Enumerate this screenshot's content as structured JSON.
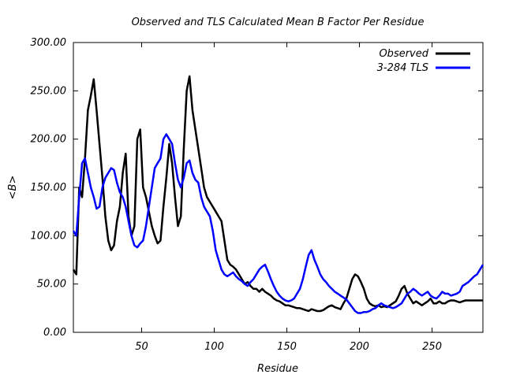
{
  "chart_data": {
    "type": "line",
    "title": "Observed and TLS Calculated Mean B Factor Per Residue",
    "xlabel": "Residue",
    "ylabel": "<B>",
    "xlim": [
      3,
      285
    ],
    "ylim": [
      0,
      300
    ],
    "xticks": [
      50,
      100,
      150,
      200,
      250
    ],
    "xtick_labels": [
      "50",
      "100",
      "150",
      "200",
      "250"
    ],
    "yticks": [
      0,
      50,
      100,
      150,
      200,
      250,
      300
    ],
    "ytick_labels": [
      "0.00",
      "50.00",
      "100.00",
      "150.00",
      "200.00",
      "250.00",
      "300.00"
    ],
    "grid": false,
    "legend_position": "top-right",
    "series": [
      {
        "name": "Observed",
        "color": "#000000",
        "x": [
          3,
          5,
          7,
          9,
          11,
          13,
          15,
          17,
          19,
          21,
          23,
          25,
          27,
          29,
          31,
          33,
          35,
          37,
          39,
          41,
          43,
          45,
          47,
          49,
          51,
          53,
          55,
          57,
          59,
          61,
          63,
          65,
          67,
          69,
          71,
          73,
          75,
          77,
          79,
          81,
          83,
          85,
          87,
          89,
          91,
          93,
          95,
          97,
          99,
          101,
          103,
          105,
          107,
          109,
          111,
          113,
          115,
          117,
          119,
          121,
          123,
          125,
          127,
          129,
          131,
          133,
          135,
          137,
          139,
          141,
          143,
          145,
          147,
          149,
          151,
          153,
          155,
          157,
          159,
          161,
          163,
          165,
          167,
          169,
          171,
          173,
          175,
          177,
          179,
          181,
          183,
          185,
          187,
          189,
          191,
          193,
          195,
          197,
          199,
          201,
          203,
          205,
          207,
          209,
          211,
          213,
          215,
          217,
          219,
          221,
          223,
          225,
          227,
          229,
          231,
          233,
          235,
          237,
          239,
          241,
          243,
          245,
          247,
          249,
          251,
          253,
          255,
          257,
          259,
          261,
          263,
          265,
          267,
          269,
          271,
          273,
          275,
          277,
          279,
          281,
          283,
          285
        ],
        "y": [
          65,
          60,
          150,
          140,
          180,
          230,
          245,
          262,
          230,
          195,
          160,
          120,
          95,
          85,
          90,
          115,
          130,
          165,
          185,
          120,
          100,
          110,
          200,
          210,
          150,
          140,
          125,
          110,
          100,
          92,
          95,
          130,
          160,
          195,
          175,
          140,
          110,
          120,
          190,
          250,
          265,
          230,
          210,
          190,
          170,
          150,
          140,
          135,
          130,
          125,
          120,
          115,
          95,
          75,
          70,
          68,
          65,
          60,
          55,
          50,
          52,
          48,
          45,
          45,
          42,
          45,
          42,
          40,
          38,
          35,
          33,
          32,
          30,
          28,
          28,
          27,
          26,
          25,
          25,
          24,
          23,
          22,
          24,
          23,
          22,
          22,
          23,
          25,
          27,
          28,
          26,
          25,
          24,
          30,
          35,
          45,
          55,
          60,
          58,
          52,
          45,
          35,
          30,
          28,
          27,
          28,
          26,
          27,
          26,
          28,
          30,
          32,
          38,
          45,
          48,
          40,
          35,
          30,
          32,
          30,
          28,
          30,
          32,
          35,
          30,
          30,
          32,
          30,
          30,
          32,
          33,
          33,
          32,
          31,
          32,
          33,
          33,
          33,
          33,
          33,
          33,
          33
        ]
      },
      {
        "name": "3-284 TLS",
        "color": "#0000ff",
        "x": [
          3,
          5,
          7,
          9,
          11,
          13,
          15,
          17,
          19,
          21,
          23,
          25,
          27,
          29,
          31,
          33,
          35,
          37,
          39,
          41,
          43,
          45,
          47,
          49,
          51,
          53,
          55,
          57,
          59,
          61,
          63,
          65,
          67,
          69,
          71,
          73,
          75,
          77,
          79,
          81,
          83,
          85,
          87,
          89,
          91,
          93,
          95,
          97,
          99,
          101,
          103,
          105,
          107,
          109,
          111,
          113,
          115,
          117,
          119,
          121,
          123,
          125,
          127,
          129,
          131,
          133,
          135,
          137,
          139,
          141,
          143,
          145,
          147,
          149,
          151,
          153,
          155,
          157,
          159,
          161,
          163,
          165,
          167,
          169,
          171,
          173,
          175,
          177,
          179,
          181,
          183,
          185,
          187,
          189,
          191,
          193,
          195,
          197,
          199,
          201,
          203,
          205,
          207,
          209,
          211,
          213,
          215,
          217,
          219,
          221,
          223,
          225,
          227,
          229,
          231,
          233,
          235,
          237,
          239,
          241,
          243,
          245,
          247,
          249,
          251,
          253,
          255,
          257,
          259,
          261,
          263,
          265,
          267,
          269,
          271,
          273,
          275,
          277,
          279,
          281,
          283,
          285
        ],
        "y": [
          105,
          100,
          140,
          175,
          180,
          165,
          150,
          140,
          128,
          130,
          150,
          160,
          165,
          170,
          168,
          155,
          145,
          140,
          130,
          115,
          100,
          90,
          88,
          92,
          95,
          110,
          130,
          150,
          170,
          175,
          180,
          200,
          205,
          200,
          195,
          175,
          158,
          150,
          160,
          175,
          178,
          165,
          158,
          155,
          140,
          130,
          125,
          120,
          105,
          85,
          75,
          65,
          60,
          58,
          60,
          62,
          58,
          55,
          53,
          50,
          48,
          52,
          55,
          60,
          65,
          68,
          70,
          63,
          55,
          48,
          42,
          38,
          35,
          33,
          32,
          33,
          35,
          40,
          45,
          55,
          68,
          80,
          85,
          75,
          68,
          60,
          55,
          52,
          48,
          45,
          42,
          40,
          38,
          36,
          34,
          30,
          26,
          22,
          20,
          20,
          21,
          21,
          22,
          24,
          25,
          28,
          30,
          28,
          27,
          26,
          25,
          26,
          28,
          30,
          35,
          40,
          42,
          45,
          43,
          40,
          38,
          40,
          42,
          38,
          36,
          35,
          38,
          42,
          40,
          40,
          38,
          39,
          40,
          42,
          48,
          50,
          52,
          55,
          58,
          60,
          65,
          70
        ]
      }
    ]
  }
}
